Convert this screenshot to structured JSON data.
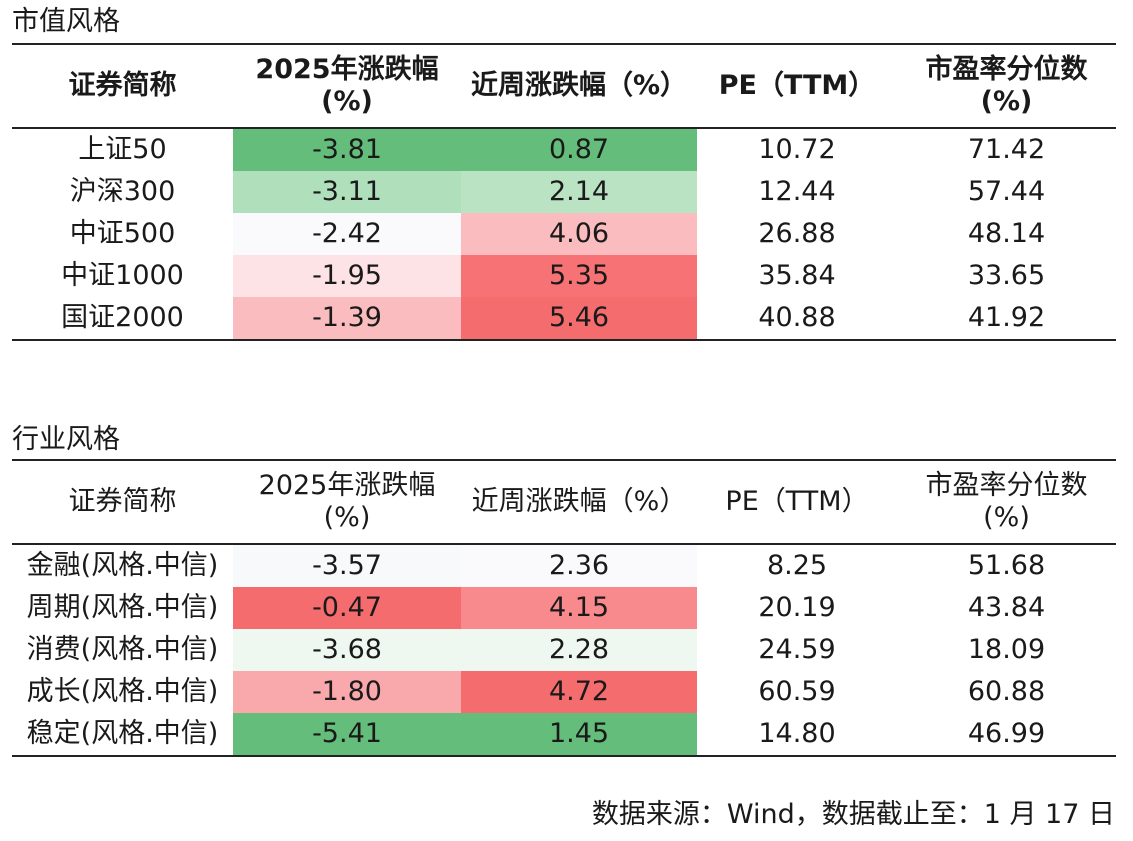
{
  "colors": {
    "green_strong": "#64bd7a",
    "green_light": "#b0dfbc",
    "green_faint": "#eef7f0",
    "neutral": "#fafafc",
    "red_faint": "#fde3e5",
    "red_light": "#fbbcc0",
    "red_mid": "#f88a8e",
    "red_strong": "#f56c6f"
  },
  "market_style": {
    "title": "市值风格",
    "headers": {
      "name": "证券简称",
      "ytd_line1": "2025年涨跌幅",
      "ytd_line2": "(%)",
      "week": "近周涨跌幅（%）",
      "pe": "PE（TTM）",
      "pct_line1": "市盈率分位数",
      "pct_line2": "(%)"
    },
    "rows": [
      {
        "name": "上证50",
        "ytd": "-3.81",
        "ytd_bg": "#64bd7a",
        "week": "0.87",
        "week_bg": "#64bd7a",
        "pe": "10.72",
        "pct": "71.42"
      },
      {
        "name": "沪深300",
        "ytd": "-3.11",
        "ytd_bg": "#b0dfbc",
        "week": "2.14",
        "week_bg": "#b9e3c3",
        "pe": "12.44",
        "pct": "57.44"
      },
      {
        "name": "中证500",
        "ytd": "-2.42",
        "ytd_bg": "#fafafc",
        "week": "4.06",
        "week_bg": "#fbbcc0",
        "pe": "26.88",
        "pct": "48.14"
      },
      {
        "name": "中证1000",
        "ytd": "-1.95",
        "ytd_bg": "#fde3e5",
        "week": "5.35",
        "week_bg": "#f77275",
        "pe": "35.84",
        "pct": "33.65"
      },
      {
        "name": "国证2000",
        "ytd": "-1.39",
        "ytd_bg": "#fbbcc0",
        "week": "5.46",
        "week_bg": "#f56c6f",
        "pe": "40.88",
        "pct": "41.92"
      }
    ]
  },
  "industry_style": {
    "title": "行业风格",
    "headers": {
      "name": "证券简称",
      "ytd_line1": "2025年涨跌幅",
      "ytd_line2": "(%)",
      "week": "近周涨跌幅（%）",
      "pe": "PE（TTM）",
      "pct_line1": "市盈率分位数",
      "pct_line2": "(%)"
    },
    "rows": [
      {
        "name": "金融(风格.中信)",
        "ytd": "-3.57",
        "ytd_bg": "#f7f9fb",
        "week": "2.36",
        "week_bg": "#fafafc",
        "pe": "8.25",
        "pct": "51.68"
      },
      {
        "name": "周期(风格.中信)",
        "ytd": "-0.47",
        "ytd_bg": "#f56c6f",
        "week": "4.15",
        "week_bg": "#f88a8e",
        "pe": "20.19",
        "pct": "43.84"
      },
      {
        "name": "消费(风格.中信)",
        "ytd": "-3.68",
        "ytd_bg": "#eef7f0",
        "week": "2.28",
        "week_bg": "#eef7f0",
        "pe": "24.59",
        "pct": "18.09"
      },
      {
        "name": "成长(风格.中信)",
        "ytd": "-1.80",
        "ytd_bg": "#f9a8ac",
        "week": "4.72",
        "week_bg": "#f56c6f",
        "pe": "60.59",
        "pct": "60.88"
      },
      {
        "name": "稳定(风格.中信)",
        "ytd": "-5.41",
        "ytd_bg": "#64bd7a",
        "week": "1.45",
        "week_bg": "#64bd7a",
        "pe": "14.80",
        "pct": "46.99"
      }
    ]
  },
  "footer": {
    "source": "数据来源：Wind，数据截止至：1 月 17 日"
  }
}
